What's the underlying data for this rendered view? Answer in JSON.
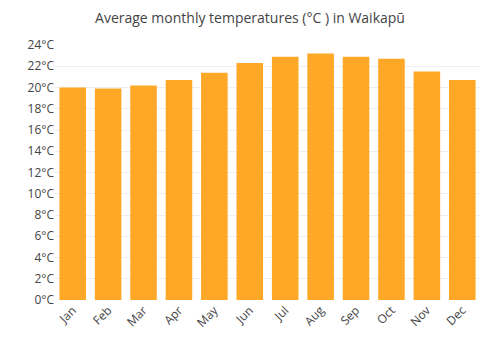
{
  "chart_data": {
    "type": "bar",
    "title": "Average monthly temperatures (°C ) in Waikapū",
    "categories": [
      "Jan",
      "Feb",
      "Mar",
      "Apr",
      "May",
      "Jun",
      "Jul",
      "Aug",
      "Sep",
      "Oct",
      "Nov",
      "Dec"
    ],
    "values": [
      20.0,
      19.9,
      20.2,
      20.7,
      21.4,
      22.3,
      22.9,
      23.2,
      22.9,
      22.7,
      21.5,
      20.7
    ],
    "color": "#FFA726",
    "ylim": [
      0,
      24
    ],
    "yticks": [
      {
        "value": 0,
        "label": "0°C"
      },
      {
        "value": 2,
        "label": "2°C"
      },
      {
        "value": 4,
        "label": "4°C"
      },
      {
        "value": 6,
        "label": "6°C"
      },
      {
        "value": 8,
        "label": "8°C"
      },
      {
        "value": 10,
        "label": "10°C"
      },
      {
        "value": 12,
        "label": "12°C"
      },
      {
        "value": 14,
        "label": "14°C"
      },
      {
        "value": 16,
        "label": "16°C"
      },
      {
        "value": 18,
        "label": "18°C"
      },
      {
        "value": 20,
        "label": "20°C"
      },
      {
        "value": 22,
        "label": "22°C"
      },
      {
        "value": 24,
        "label": "24°C"
      }
    ],
    "grid": true
  }
}
